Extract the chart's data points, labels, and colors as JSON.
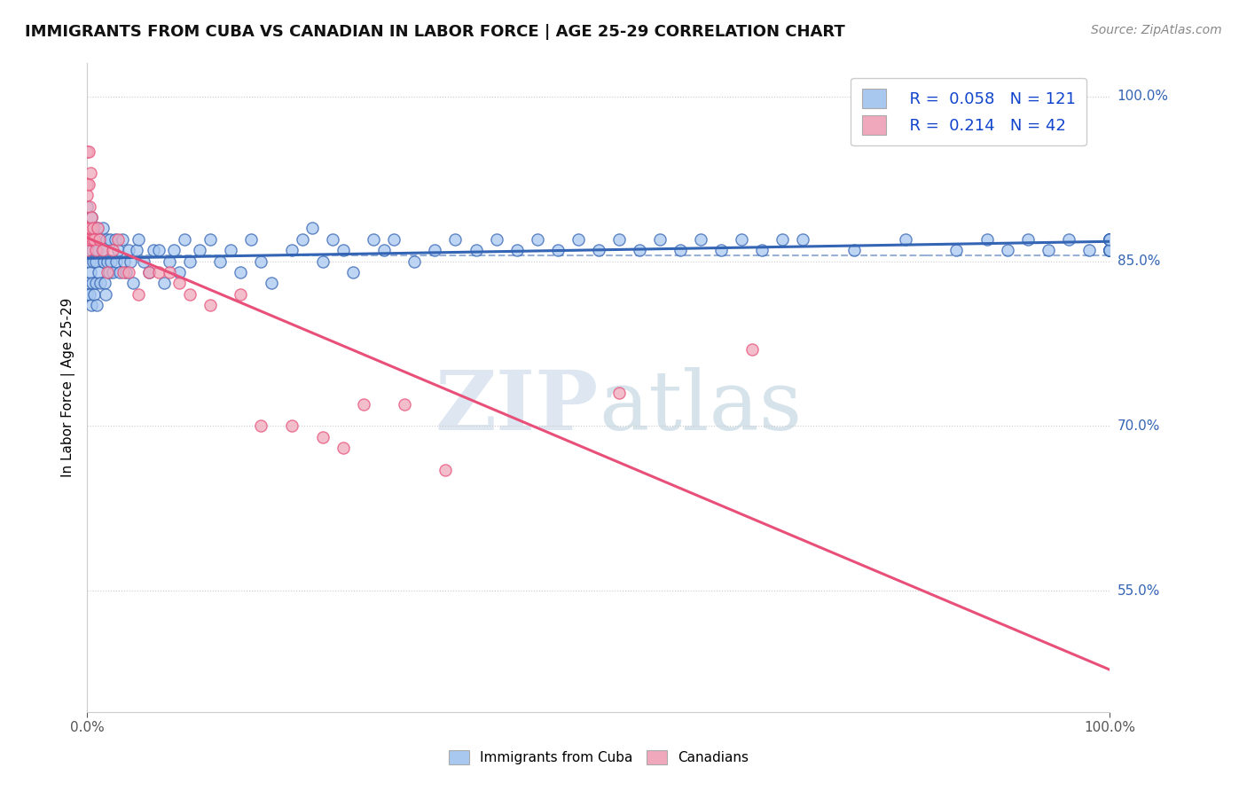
{
  "title": "IMMIGRANTS FROM CUBA VS CANADIAN IN LABOR FORCE | AGE 25-29 CORRELATION CHART",
  "source": "Source: ZipAtlas.com",
  "ylabel": "In Labor Force | Age 25-29",
  "xlim": [
    0.0,
    1.0
  ],
  "ylim": [
    0.44,
    1.03
  ],
  "yticks": [
    0.55,
    0.7,
    0.85,
    1.0
  ],
  "ytick_labels": [
    "55.0%",
    "70.0%",
    "85.0%",
    "100.0%"
  ],
  "xtick_labels": [
    "0.0%",
    "100.0%"
  ],
  "xticks": [
    0.0,
    1.0
  ],
  "watermark_zip": "ZIP",
  "watermark_atlas": "atlas",
  "legend_labels": [
    "Immigrants from Cuba",
    "Canadians"
  ],
  "r_cuba": 0.058,
  "n_cuba": 121,
  "r_canada": 0.214,
  "n_canada": 42,
  "color_cuba": "#A8C8F0",
  "color_canada": "#F0A8BC",
  "line_color_cuba": "#3464B4",
  "line_color_canada": "#E8507A",
  "background_color": "#FFFFFF",
  "grid_color": "#CCCCCC",
  "cuba_x": [
    0.0,
    0.0,
    0.0,
    0.001,
    0.001,
    0.001,
    0.002,
    0.002,
    0.003,
    0.003,
    0.004,
    0.004,
    0.005,
    0.005,
    0.006,
    0.006,
    0.007,
    0.007,
    0.008,
    0.008,
    0.009,
    0.01,
    0.01,
    0.011,
    0.012,
    0.013,
    0.014,
    0.015,
    0.016,
    0.017,
    0.018,
    0.019,
    0.02,
    0.021,
    0.022,
    0.023,
    0.025,
    0.027,
    0.028,
    0.03,
    0.032,
    0.034,
    0.036,
    0.038,
    0.04,
    0.042,
    0.045,
    0.048,
    0.05,
    0.055,
    0.06,
    0.065,
    0.07,
    0.075,
    0.08,
    0.085,
    0.09,
    0.095,
    0.1,
    0.11,
    0.12,
    0.13,
    0.14,
    0.15,
    0.16,
    0.17,
    0.18,
    0.2,
    0.21,
    0.22,
    0.23,
    0.24,
    0.25,
    0.26,
    0.28,
    0.29,
    0.3,
    0.32,
    0.34,
    0.36,
    0.38,
    0.4,
    0.42,
    0.44,
    0.46,
    0.48,
    0.5,
    0.52,
    0.54,
    0.56,
    0.58,
    0.6,
    0.62,
    0.64,
    0.66,
    0.68,
    0.7,
    0.75,
    0.8,
    0.85,
    0.88,
    0.9,
    0.92,
    0.94,
    0.96,
    0.98,
    1.0,
    1.0,
    1.0,
    1.0,
    1.0,
    1.0,
    1.0,
    1.0,
    1.0,
    1.0,
    1.0,
    1.0,
    1.0,
    1.0,
    1.0
  ],
  "cuba_y": [
    0.82,
    0.87,
    0.9,
    0.86,
    0.83,
    0.88,
    0.85,
    0.82,
    0.87,
    0.84,
    0.81,
    0.89,
    0.86,
    0.83,
    0.88,
    0.85,
    0.82,
    0.87,
    0.85,
    0.83,
    0.81,
    0.88,
    0.86,
    0.84,
    0.87,
    0.83,
    0.86,
    0.88,
    0.85,
    0.83,
    0.82,
    0.87,
    0.85,
    0.84,
    0.87,
    0.85,
    0.84,
    0.87,
    0.85,
    0.86,
    0.84,
    0.87,
    0.85,
    0.84,
    0.86,
    0.85,
    0.83,
    0.86,
    0.87,
    0.85,
    0.84,
    0.86,
    0.86,
    0.83,
    0.85,
    0.86,
    0.84,
    0.87,
    0.85,
    0.86,
    0.87,
    0.85,
    0.86,
    0.84,
    0.87,
    0.85,
    0.83,
    0.86,
    0.87,
    0.88,
    0.85,
    0.87,
    0.86,
    0.84,
    0.87,
    0.86,
    0.87,
    0.85,
    0.86,
    0.87,
    0.86,
    0.87,
    0.86,
    0.87,
    0.86,
    0.87,
    0.86,
    0.87,
    0.86,
    0.87,
    0.86,
    0.87,
    0.86,
    0.87,
    0.86,
    0.87,
    0.87,
    0.86,
    0.87,
    0.86,
    0.87,
    0.86,
    0.87,
    0.86,
    0.87,
    0.86,
    0.87,
    0.86,
    0.87,
    0.86,
    0.87,
    0.86,
    0.87,
    0.86,
    0.87,
    0.86,
    0.87,
    0.86,
    0.87,
    0.86,
    0.87
  ],
  "canada_x": [
    0.0,
    0.0,
    0.0,
    0.0,
    0.0,
    0.001,
    0.001,
    0.001,
    0.002,
    0.002,
    0.003,
    0.003,
    0.004,
    0.005,
    0.006,
    0.007,
    0.008,
    0.01,
    0.012,
    0.015,
    0.02,
    0.025,
    0.03,
    0.035,
    0.04,
    0.05,
    0.06,
    0.07,
    0.08,
    0.09,
    0.1,
    0.12,
    0.15,
    0.17,
    0.2,
    0.23,
    0.25,
    0.27,
    0.31,
    0.35,
    0.52,
    0.65
  ],
  "canada_y": [
    0.95,
    0.92,
    0.91,
    0.88,
    0.86,
    0.95,
    0.92,
    0.87,
    0.9,
    0.87,
    0.93,
    0.88,
    0.89,
    0.87,
    0.88,
    0.87,
    0.86,
    0.88,
    0.87,
    0.86,
    0.84,
    0.86,
    0.87,
    0.84,
    0.84,
    0.82,
    0.84,
    0.84,
    0.84,
    0.83,
    0.82,
    0.81,
    0.82,
    0.7,
    0.7,
    0.69,
    0.68,
    0.72,
    0.72,
    0.66,
    0.73,
    0.77
  ],
  "dashed_line_y": 0.855
}
